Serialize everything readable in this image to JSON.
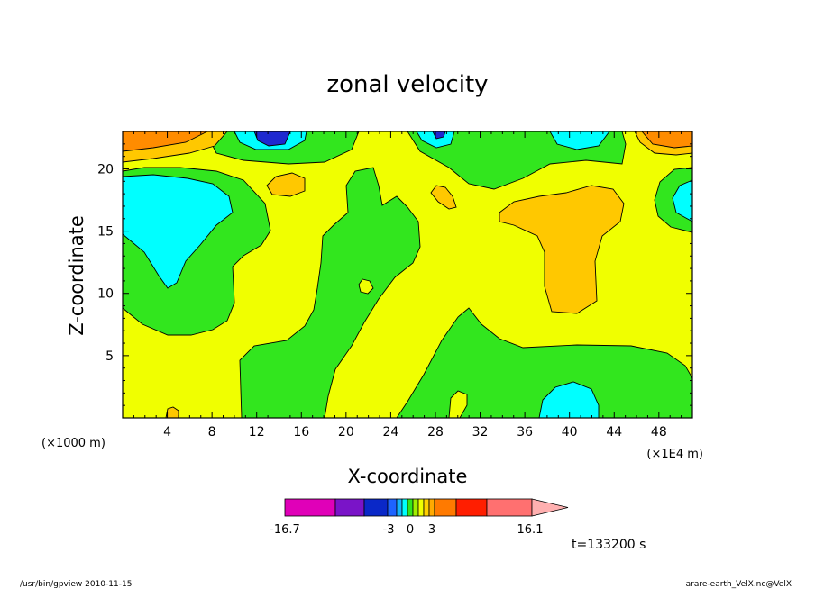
{
  "chart_data": {
    "type": "heatmap",
    "title": "zonal velocity",
    "xlabel": "X-coordinate",
    "ylabel": "Z-coordinate",
    "x_unit_left": "(×1000 m)",
    "x_unit_right": "(×1E4 m)",
    "xlim": [
      0,
      51
    ],
    "ylim": [
      0,
      23
    ],
    "x_ticks": [
      4,
      8,
      12,
      16,
      20,
      24,
      28,
      32,
      36,
      40,
      44,
      48
    ],
    "x_tick_labels": [
      "4",
      "8",
      "12",
      "16",
      "20",
      "24",
      "28",
      "32",
      "36",
      "40",
      "44",
      "48"
    ],
    "y_ticks": [
      5,
      10,
      15,
      20
    ],
    "y_tick_labels": [
      "5",
      "10",
      "15",
      "20"
    ],
    "colorbar_labels": [
      "-16.7",
      "-3",
      "0",
      "3",
      "16.1"
    ],
    "colorbar_colors": [
      "#e000b8",
      "#7a14c8",
      "#0a28c8",
      "#1e64ff",
      "#14b4ff",
      "#00ffff",
      "#32e61e",
      "#a0f000",
      "#f0ff00",
      "#ffd000",
      "#ffaa00",
      "#ff7a00",
      "#ff1e00",
      "#ff7070",
      "#ffb0b0"
    ],
    "time_label": "t=133200 s",
    "footer_left": "/usr/bin/gpview 2010-11-15",
    "footer_right": "arare-earth_VelX.nc@VelX",
    "level_colors": {
      "strong_neg": "#1e28d0",
      "neg": "#00ffff",
      "near_zero": "#32e61e",
      "pos": "#f0ff00",
      "mod_pos": "#ffc800",
      "strong_pos": "#ff8c00"
    }
  }
}
